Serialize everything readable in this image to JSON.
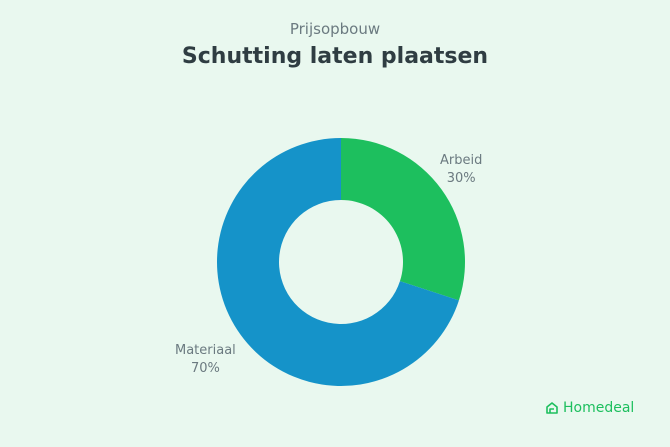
{
  "chart_data": {
    "type": "pie",
    "subtitle": "Prijsopbouw",
    "title": "Schutting laten plaatsen",
    "donut": true,
    "slices": [
      {
        "label": "Arbeid",
        "value": 30,
        "value_label": "30%",
        "color": "#1dbf5e"
      },
      {
        "label": "Materiaal",
        "value": 70,
        "value_label": "70%",
        "color": "#1593c9"
      }
    ]
  },
  "brand": {
    "name": "Homedeal",
    "icon": "house-icon",
    "color": "#1dbf5e"
  }
}
